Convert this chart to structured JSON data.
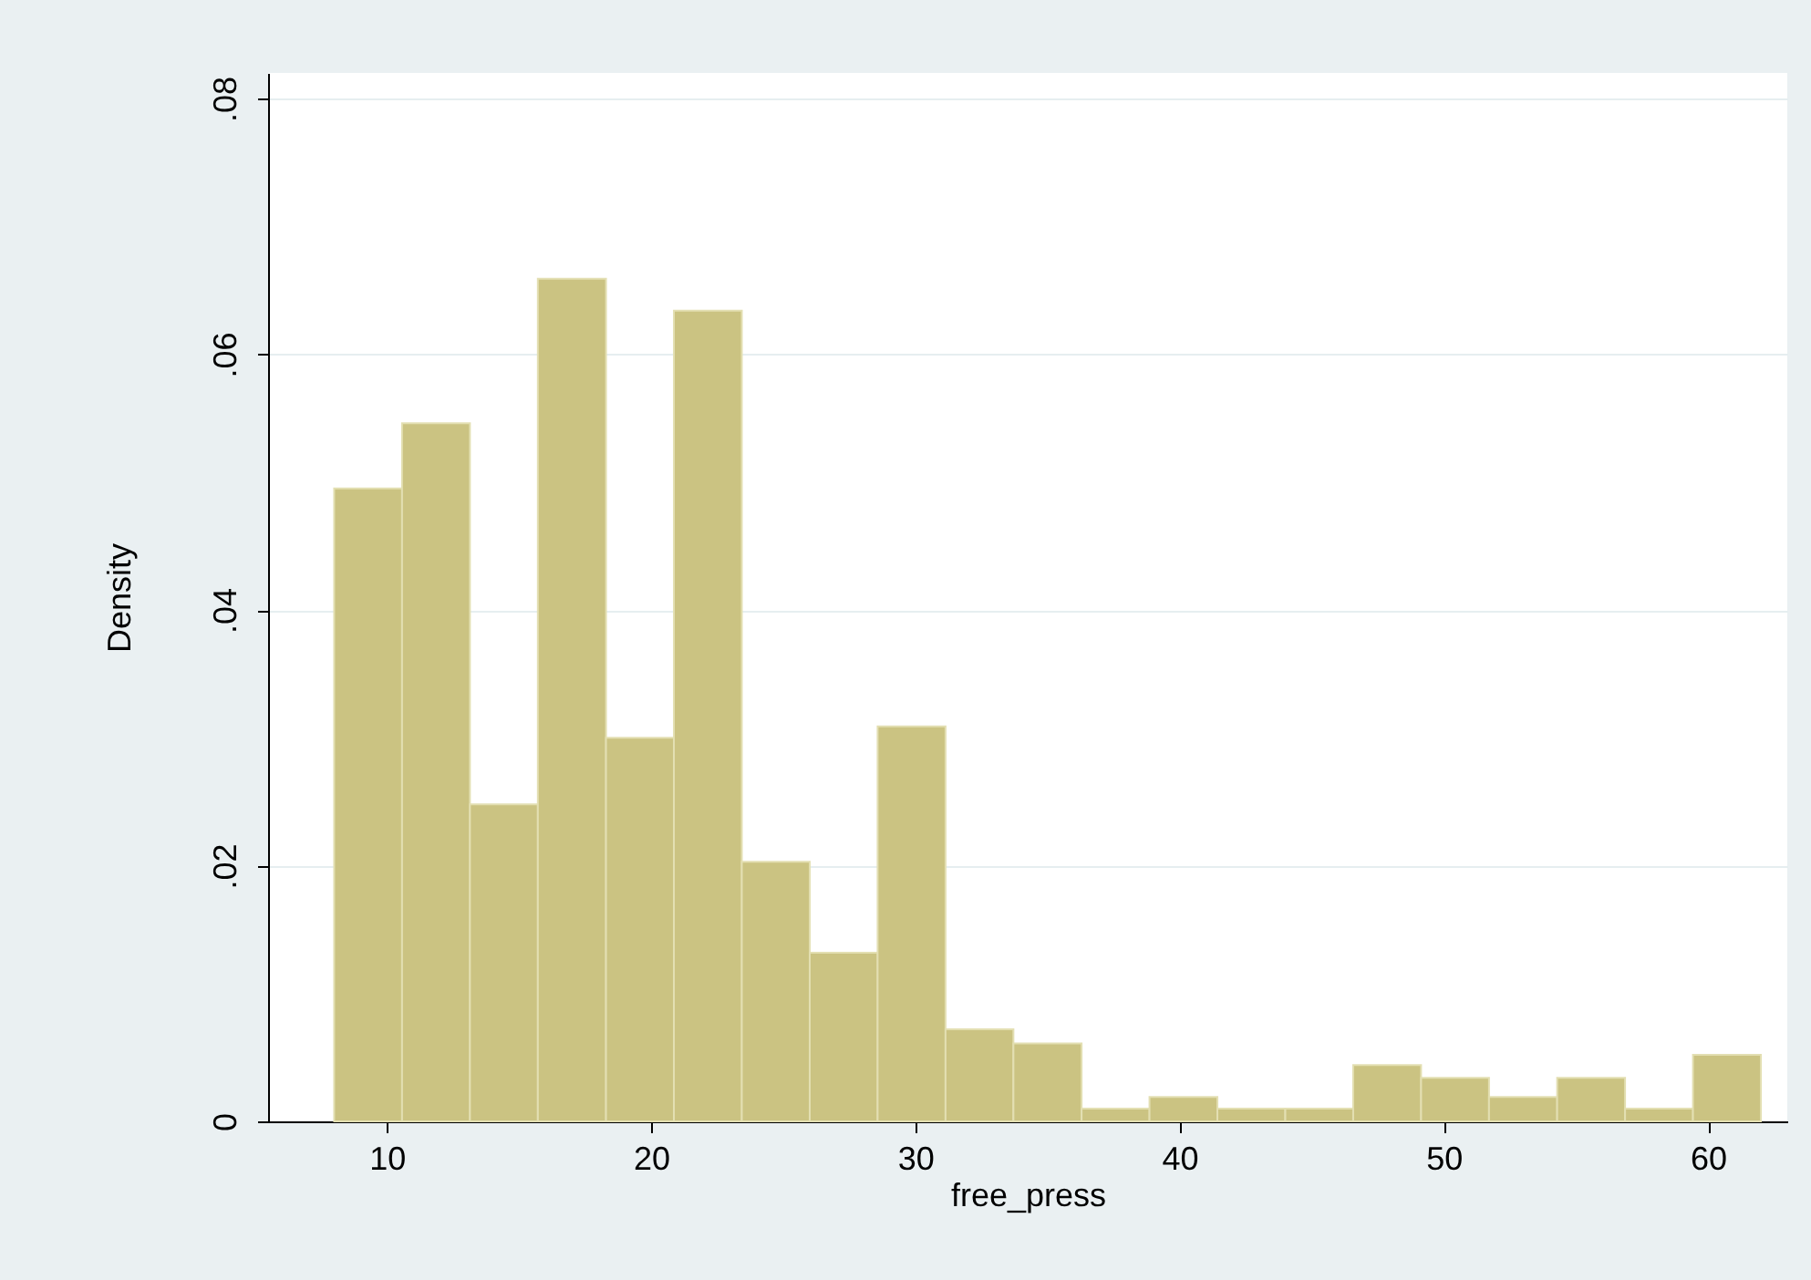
{
  "chart_data": {
    "type": "histogram",
    "xlabel": "free_press",
    "ylabel": "Density",
    "bins": [
      8,
      10.57,
      13.14,
      15.71,
      18.29,
      20.86,
      23.43,
      26,
      28.57,
      31.14,
      33.71,
      36.29,
      38.86,
      41.43,
      44,
      46.57,
      49.14,
      51.71,
      54.29,
      56.86,
      59.43,
      62
    ],
    "values": [
      0.0495,
      0.0546,
      0.0248,
      0.0659,
      0.03,
      0.0634,
      0.0203,
      0.0132,
      0.0309,
      0.0072,
      0.0061,
      0.001,
      0.0019,
      0.001,
      0.001,
      0.0044,
      0.0034,
      0.0019,
      0.0034,
      0.001,
      0.0052
    ],
    "color": "#cbc382",
    "xlim": [
      5.5,
      63
    ],
    "xticks": [
      10,
      20,
      30,
      40,
      50,
      60
    ],
    "ylim": [
      0,
      0.082
    ],
    "yticks": [
      0,
      {
        "value": 0.02,
        "label": ".02"
      },
      {
        "value": 0.04,
        "label": ".04"
      },
      {
        "value": 0.06,
        "label": ".06"
      },
      {
        "value": 0.08,
        "label": ".08"
      }
    ],
    "grid": "y"
  }
}
